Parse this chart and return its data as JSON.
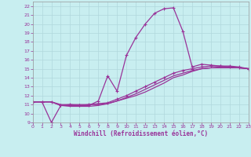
{
  "xlabel": "Windchill (Refroidissement éolien,°C)",
  "bg_color": "#c8eef0",
  "grid_color": "#b0d8dc",
  "line_color": "#993399",
  "xlim": [
    0,
    23
  ],
  "ylim": [
    9,
    22.5
  ],
  "xticks": [
    0,
    1,
    2,
    3,
    4,
    5,
    6,
    7,
    8,
    9,
    10,
    11,
    12,
    13,
    14,
    15,
    16,
    17,
    18,
    19,
    20,
    21,
    22,
    23
  ],
  "yticks": [
    9,
    10,
    11,
    12,
    13,
    14,
    15,
    16,
    17,
    18,
    19,
    20,
    21,
    22
  ],
  "curve_main_x": [
    0,
    1,
    2,
    3,
    4,
    5,
    6,
    7,
    8,
    9,
    10,
    11,
    12,
    13,
    14,
    15,
    16,
    17,
    18,
    19,
    20,
    21,
    22,
    23
  ],
  "curve_main_y": [
    11.3,
    11.3,
    9.0,
    10.9,
    10.9,
    10.9,
    10.9,
    11.4,
    14.2,
    12.5,
    16.5,
    18.5,
    20.0,
    21.2,
    21.7,
    21.8,
    19.2,
    15.2,
    15.5,
    15.4,
    15.3,
    15.2,
    15.1,
    15.0
  ],
  "curve_smooth1_x": [
    0,
    1,
    2,
    3,
    4,
    5,
    6,
    7,
    8,
    9,
    10,
    11,
    12,
    13,
    14,
    15,
    16,
    17,
    18,
    19,
    20,
    21,
    22,
    23
  ],
  "curve_smooth1_y": [
    11.3,
    11.3,
    11.3,
    10.9,
    11.0,
    10.9,
    11.0,
    11.1,
    11.2,
    11.6,
    12.0,
    12.5,
    13.0,
    13.5,
    14.0,
    14.5,
    14.8,
    15.0,
    15.2,
    15.3,
    15.3,
    15.3,
    15.2,
    15.0
  ],
  "curve_smooth2_x": [
    0,
    1,
    2,
    3,
    4,
    5,
    6,
    7,
    8,
    9,
    10,
    11,
    12,
    13,
    14,
    15,
    16,
    17,
    18,
    19,
    20,
    21,
    22,
    23
  ],
  "curve_smooth2_y": [
    11.3,
    11.3,
    11.3,
    11.0,
    11.0,
    11.0,
    11.0,
    11.0,
    11.1,
    11.4,
    11.7,
    12.0,
    12.4,
    12.9,
    13.4,
    14.0,
    14.3,
    14.7,
    15.0,
    15.1,
    15.2,
    15.2,
    15.1,
    15.0
  ],
  "curve_smooth3_x": [
    0,
    1,
    2,
    3,
    4,
    5,
    6,
    7,
    8,
    9,
    10,
    11,
    12,
    13,
    14,
    15,
    16,
    17,
    18,
    19,
    20,
    21,
    22,
    23
  ],
  "curve_smooth3_y": [
    11.3,
    11.3,
    11.3,
    10.9,
    10.8,
    10.8,
    10.8,
    10.9,
    11.1,
    11.4,
    11.8,
    12.2,
    12.7,
    13.2,
    13.7,
    14.2,
    14.5,
    14.8,
    15.0,
    15.1,
    15.1,
    15.1,
    15.1,
    15.0
  ]
}
